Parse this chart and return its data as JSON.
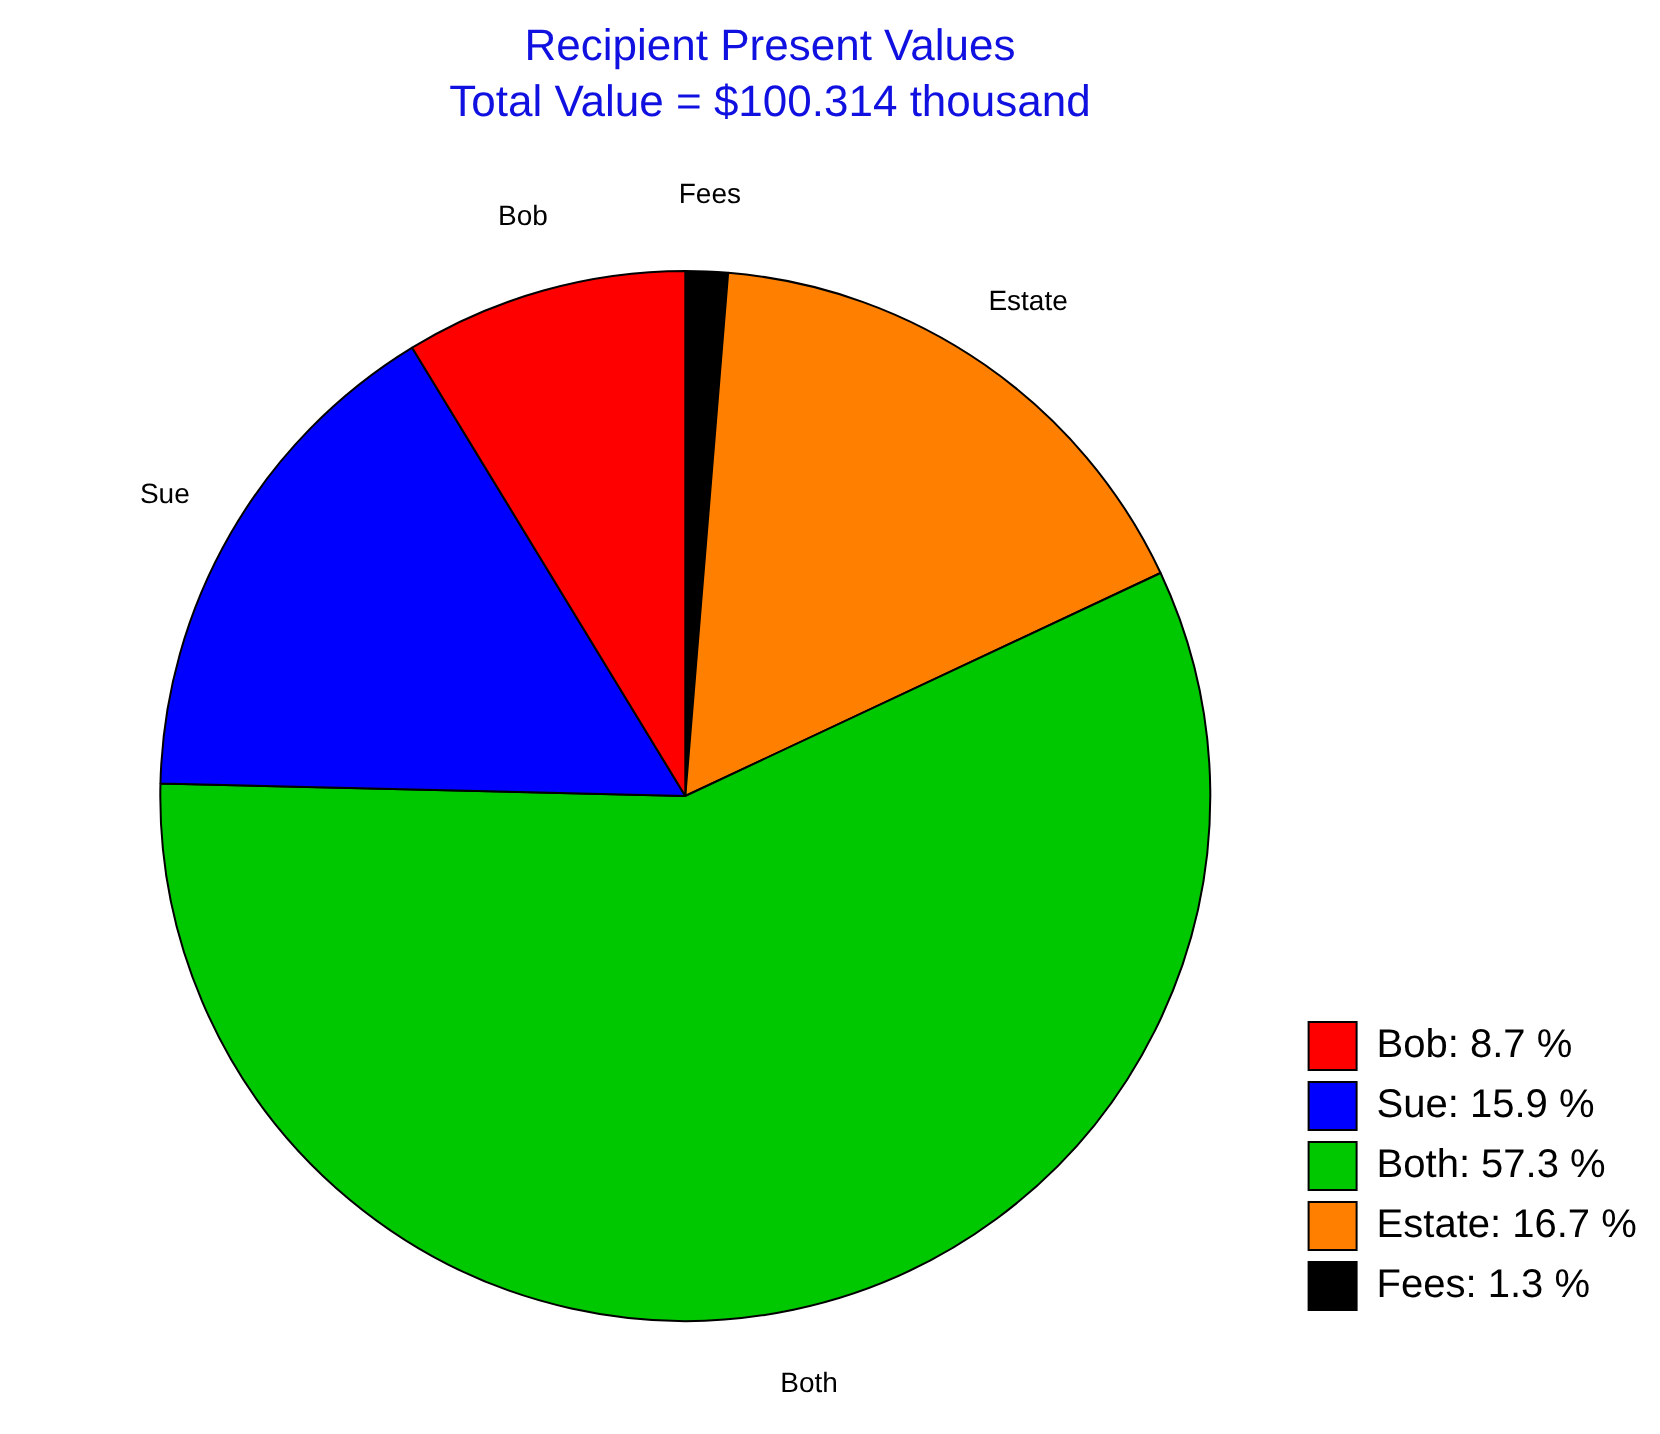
{
  "chart_data": {
    "type": "pie",
    "title": "Recipient Present Values",
    "subtitle": "Total Value = $100.314 thousand",
    "categories": [
      "Bob",
      "Sue",
      "Both",
      "Estate",
      "Fees"
    ],
    "values": [
      8.7,
      15.9,
      57.3,
      16.7,
      1.3
    ],
    "colors": [
      "#ff0000",
      "#0000ff",
      "#00c800",
      "#ff8000",
      "#000000"
    ],
    "value_labels": [
      ": 8.7 %",
      ": 15.9 %",
      ": 57.3 %",
      ": 16.7 %",
      ": 1.3 %"
    ],
    "legend": "bottom right"
  }
}
